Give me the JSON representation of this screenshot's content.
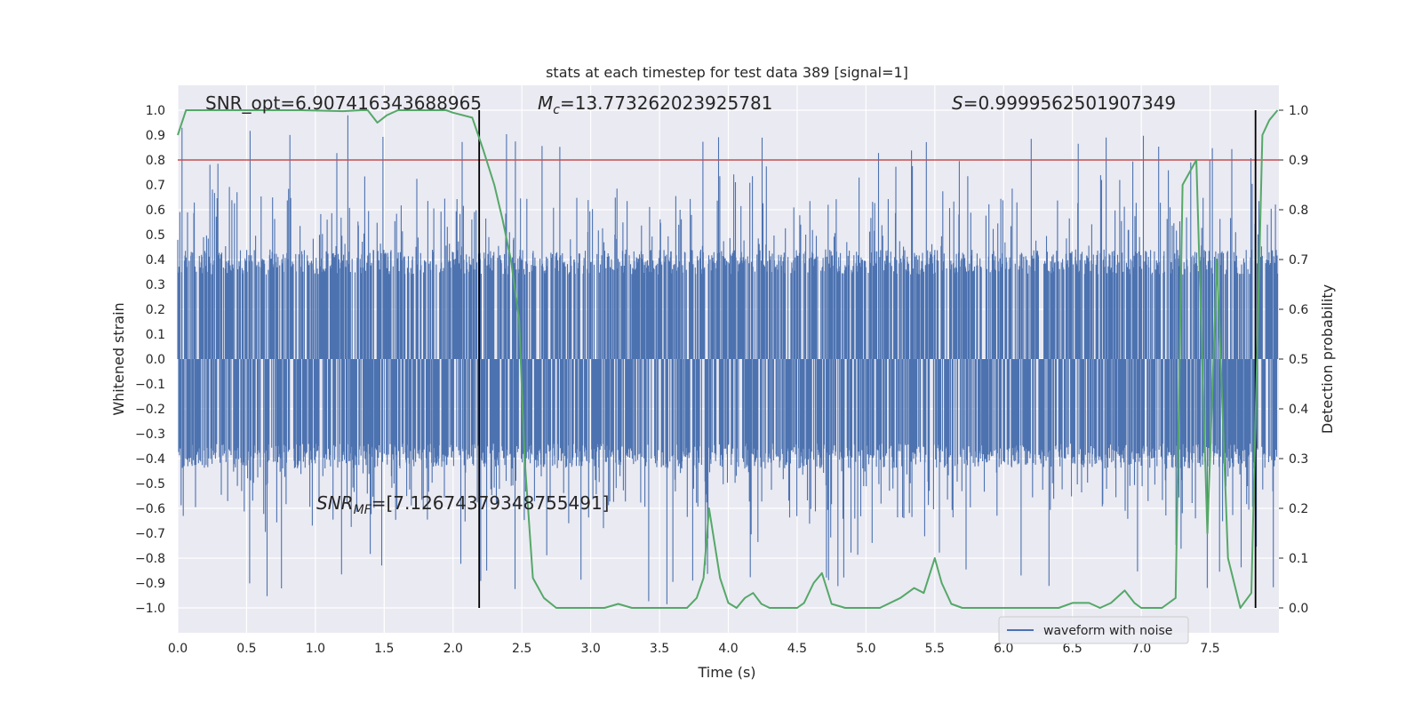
{
  "chart_data": {
    "type": "line",
    "title": "stats at each timestep for test data 389 [signal=1]",
    "xlabel": "Time (s)",
    "ylabel": "Whitened strain",
    "y2label": "Detection probability",
    "xlim": [
      0.0,
      8.0
    ],
    "ylim": [
      -1.1,
      1.1
    ],
    "y2lim": [
      -0.05,
      1.05
    ],
    "x_ticks": [
      0.0,
      0.5,
      1.0,
      1.5,
      2.0,
      2.5,
      3.0,
      3.5,
      4.0,
      4.5,
      5.0,
      5.5,
      6.0,
      6.5,
      7.0,
      7.5
    ],
    "x_tick_labels": [
      "0.0",
      "0.5",
      "1.0",
      "1.5",
      "2.0",
      "2.5",
      "3.0",
      "3.5",
      "4.0",
      "4.5",
      "5.0",
      "5.5",
      "6.0",
      "6.5",
      "7.0",
      "7.5"
    ],
    "y_ticks": [
      1.0,
      0.9,
      0.8,
      0.7,
      0.6,
      0.5,
      0.4,
      0.3,
      0.2,
      0.1,
      0.0,
      -0.1,
      -0.2,
      -0.3,
      -0.4,
      -0.5,
      -0.6,
      -0.7,
      -0.8,
      -0.9,
      -1.0
    ],
    "y_tick_labels": [
      "1.0",
      "0.9",
      "0.8",
      "0.7",
      "0.6",
      "0.5",
      "0.4",
      "0.3",
      "0.2",
      "0.1",
      "0.0",
      "−0.1",
      "−0.2",
      "−0.3",
      "−0.4",
      "−0.5",
      "−0.6",
      "−0.7",
      "−0.8",
      "−0.9",
      "−1.0"
    ],
    "y2_ticks": [
      1.0,
      0.9,
      0.8,
      0.7,
      0.6,
      0.5,
      0.4,
      0.3,
      0.2,
      0.1,
      0.0
    ],
    "y2_tick_labels": [
      "1.0",
      "0.9",
      "0.8",
      "0.7",
      "0.6",
      "0.5",
      "0.4",
      "0.3",
      "0.2",
      "0.1",
      "0.0"
    ],
    "grid": true,
    "background_color": "#eaeaf2",
    "annotations": {
      "snr_opt": "SNR_opt=6.907416343688965",
      "mc_symbol": "M",
      "mc_sub": "c",
      "mc_value": "=13.773262023925781",
      "s_symbol": "S",
      "s_value": "=0.9999562501907349",
      "snr_mf_symbol": "SNR",
      "snr_mf_sub": "MF",
      "snr_mf_value": "=[7.12674379348755491]"
    },
    "vertical_lines": [
      2.19,
      7.83
    ],
    "threshold": {
      "value": 0.9,
      "axis": "right",
      "color": "#c44e52"
    },
    "series": [
      {
        "name": "waveform with noise",
        "axis": "left",
        "color": "#4c72b0",
        "kind": "noise",
        "typical_envelope": [
          -0.4,
          0.4
        ],
        "peak_range": [
          -1.0,
          0.99
        ]
      },
      {
        "axis": "right",
        "color": "#55a868",
        "kind": "probability",
        "x": [
          0.0,
          0.06,
          0.3,
          0.6,
          0.9,
          1.2,
          1.33,
          1.38,
          1.45,
          1.52,
          1.6,
          1.8,
          1.95,
          2.0,
          2.14,
          2.22,
          2.3,
          2.36,
          2.42,
          2.48,
          2.52,
          2.58,
          2.66,
          2.75,
          2.9,
          3.1,
          3.2,
          3.3,
          3.5,
          3.7,
          3.77,
          3.82,
          3.86,
          3.94,
          4.0,
          4.06,
          4.12,
          4.18,
          4.24,
          4.3,
          4.5,
          4.55,
          4.62,
          4.68,
          4.75,
          4.85,
          4.95,
          5.1,
          5.25,
          5.35,
          5.42,
          5.5,
          5.55,
          5.62,
          5.7,
          5.8,
          6.0,
          6.2,
          6.4,
          6.5,
          6.55,
          6.62,
          6.7,
          6.78,
          6.88,
          6.95,
          7.0,
          7.15,
          7.25,
          7.3,
          7.4,
          7.48,
          7.55,
          7.63,
          7.72,
          7.8,
          7.88,
          7.93,
          7.99
        ],
        "values": [
          0.95,
          1.0,
          1.0,
          1.0,
          1.0,
          0.998,
          1.0,
          1.0,
          0.975,
          0.99,
          1.0,
          1.0,
          1.0,
          0.995,
          0.985,
          0.92,
          0.85,
          0.78,
          0.7,
          0.58,
          0.3,
          0.06,
          0.02,
          0.0,
          0.0,
          0.0,
          0.008,
          0.0,
          0.0,
          0.0,
          0.02,
          0.06,
          0.2,
          0.06,
          0.01,
          0.0,
          0.02,
          0.03,
          0.008,
          0.0,
          0.0,
          0.01,
          0.05,
          0.07,
          0.008,
          0.0,
          0.0,
          0.0,
          0.02,
          0.04,
          0.03,
          0.1,
          0.05,
          0.008,
          0.0,
          0.0,
          0.0,
          0.0,
          0.0,
          0.01,
          0.01,
          0.01,
          0.0,
          0.01,
          0.035,
          0.01,
          0.0,
          0.0,
          0.02,
          0.85,
          0.9,
          0.15,
          0.7,
          0.1,
          0.0,
          0.03,
          0.95,
          0.98,
          1.0
        ]
      }
    ],
    "legend": {
      "entries": [
        "waveform with noise"
      ],
      "placement": "lower-right"
    }
  }
}
